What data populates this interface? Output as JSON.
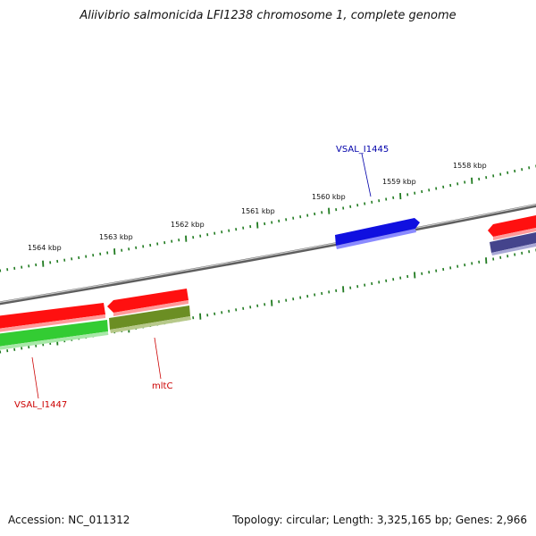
{
  "title": "Aliivibrio salmonicida LFI1238 chromosome 1, complete genome",
  "footer": {
    "accession": "Accession: NC_011312",
    "summary": "Topology: circular; Length: 3,325,165 bp; Genes: 2,966"
  },
  "scale_labels": [
    "1564 kbp",
    "1563 kbp",
    "1562 kbp",
    "1561 kbp",
    "1560 kbp",
    "1559 kbp",
    "1558 kbp"
  ],
  "gene_labels": {
    "vsal_i1445": "VSAL_I1445",
    "mltc": "mltC",
    "vsal_i1447": "VSAL_I1447"
  },
  "colors": {
    "backbone": "#808080",
    "tick": "#1f7a1f",
    "forward_gene": "#ff1a1a",
    "reverse_gene_green": "#33cc33",
    "reverse_gene_olive": "#6b8e23",
    "highlight_gene_blue": "#1010e0",
    "reverse_gene_slate": "#4a4a9a",
    "label_blue": "#0000aa",
    "label_red": "#cc0000"
  }
}
